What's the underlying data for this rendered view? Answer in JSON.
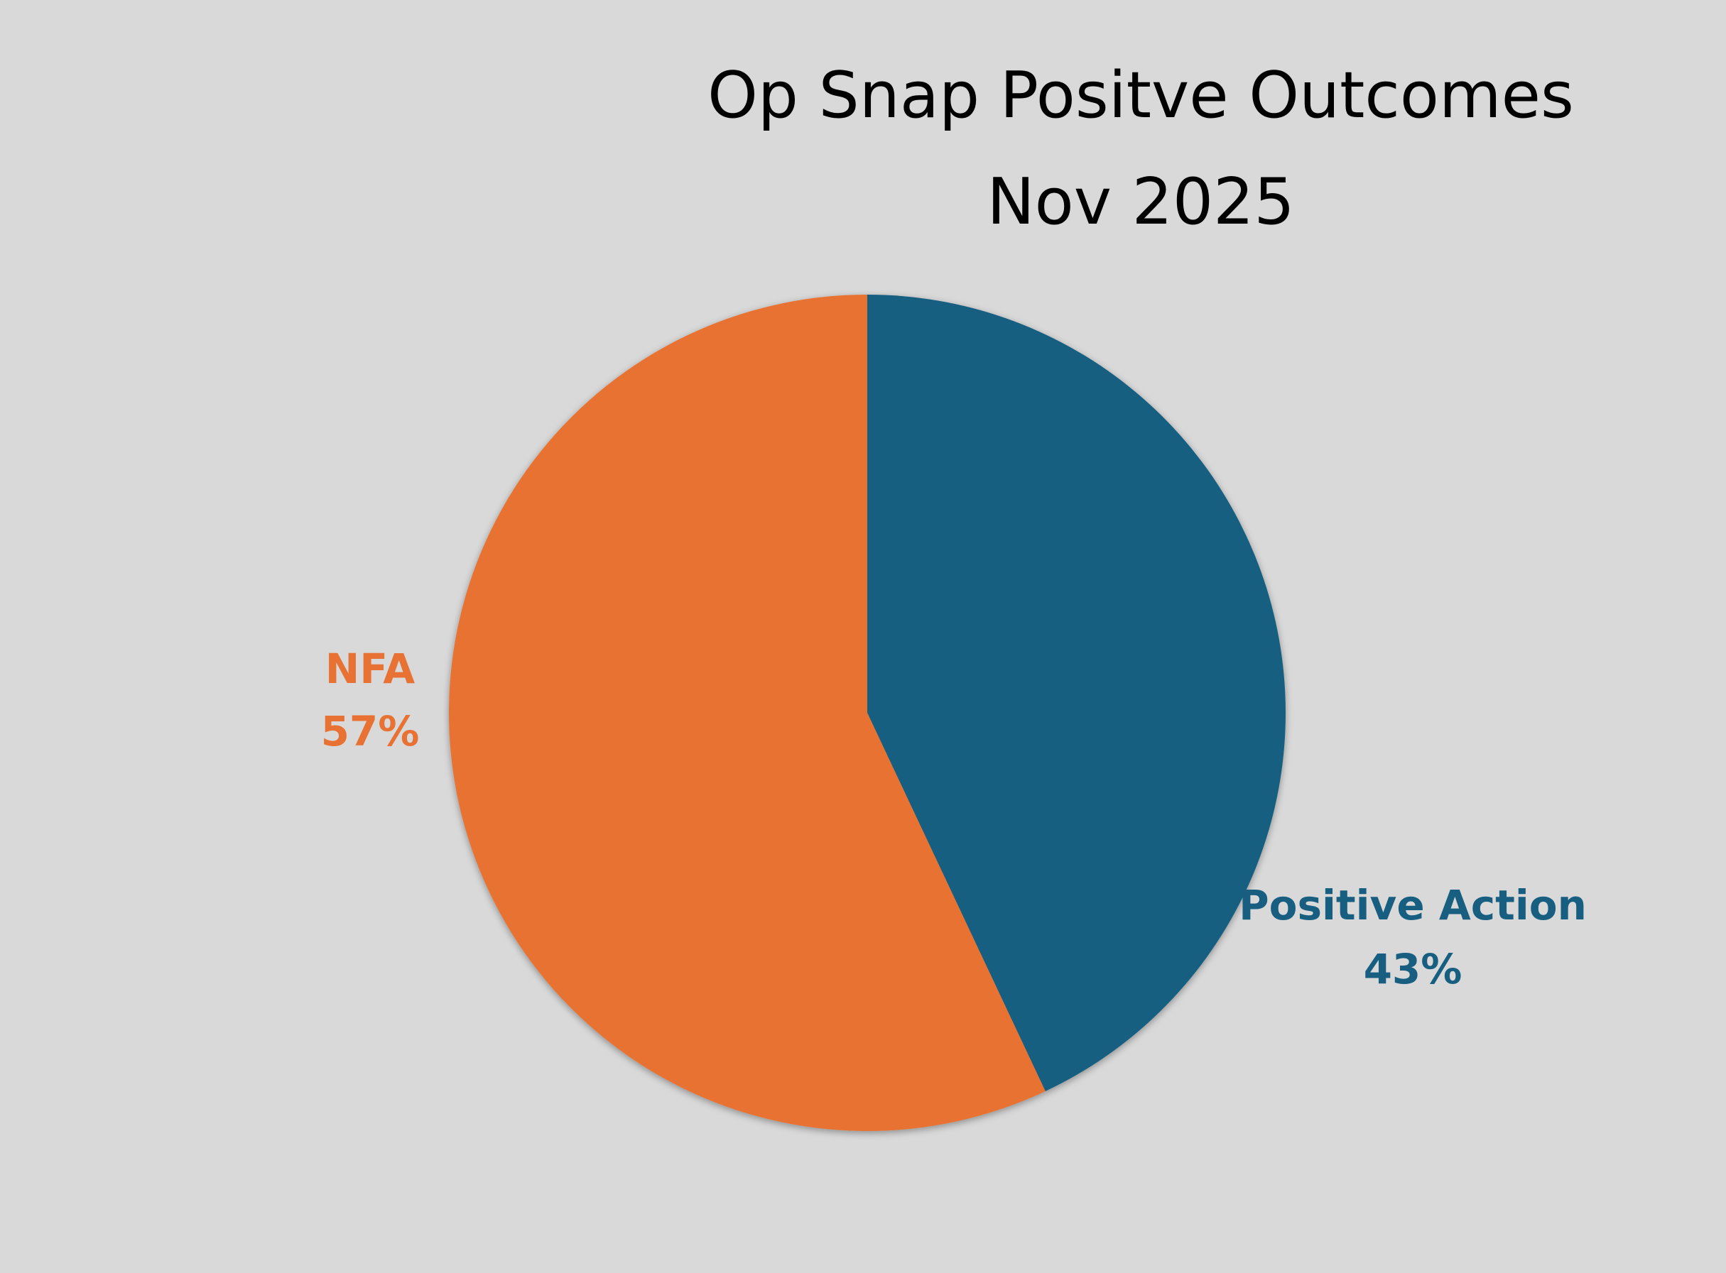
{
  "chart_data": {
    "type": "pie",
    "title": "Op Snap Positve Outcomes",
    "subtitle": "Nov 2025",
    "categories": [
      "Positive Action",
      "NFA"
    ],
    "values": [
      43,
      57
    ],
    "value_labels": [
      "43%",
      "57%"
    ],
    "colors": [
      "#175e80",
      "#e87233"
    ]
  }
}
